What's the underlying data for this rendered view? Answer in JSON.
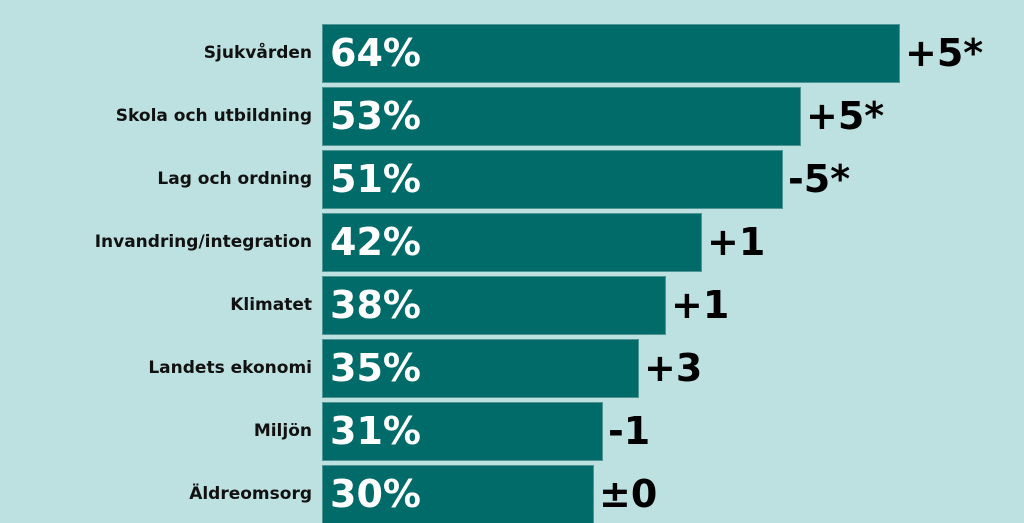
{
  "chart_data": {
    "type": "bar",
    "orientation": "horizontal",
    "categories": [
      "Sjukvården",
      "Skola och utbildning",
      "Lag och ordning",
      "Invandring/integration",
      "Klimatet",
      "Landets ekonomi",
      "Miljön",
      "Äldreomsorg"
    ],
    "values": [
      64,
      53,
      51,
      42,
      38,
      35,
      31,
      30
    ],
    "value_labels": [
      "64%",
      "53%",
      "51%",
      "42%",
      "38%",
      "35%",
      "31%",
      "30%"
    ],
    "changes": [
      "+5*",
      "+5*",
      "-5*",
      "+1",
      "+1",
      "+3",
      "-1",
      "±0"
    ],
    "xlim": [
      0,
      100
    ],
    "grid": false,
    "colors": {
      "bar": "#006b68",
      "background": "#bde0e0"
    }
  }
}
